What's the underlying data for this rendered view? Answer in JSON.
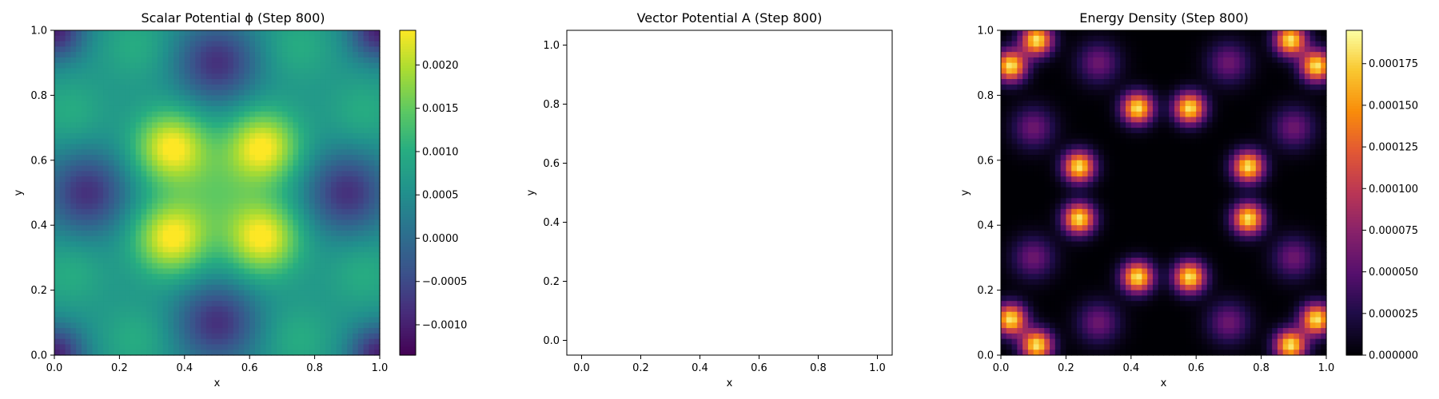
{
  "chart_data": [
    {
      "type": "heatmap",
      "title": "Scalar Potential ϕ (Step 800)",
      "xlabel": "x",
      "ylabel": "y",
      "xlim": [
        0.0,
        1.0
      ],
      "ylim": [
        0.0,
        1.0
      ],
      "xticks": [
        "0.0",
        "0.2",
        "0.4",
        "0.6",
        "0.8",
        "1.0"
      ],
      "yticks": [
        "0.0",
        "0.2",
        "0.4",
        "0.6",
        "0.8",
        "1.0"
      ],
      "colormap": "viridis",
      "colorbar": {
        "min": -0.00135,
        "max": 0.0024,
        "ticks": [
          -0.001,
          -0.0005,
          0.0,
          0.0005,
          0.001,
          0.0015,
          0.002
        ],
        "tick_labels": [
          "−0.0010",
          "−0.0005",
          "0.0000",
          "0.0005",
          "0.0010",
          "0.0015",
          "0.0020"
        ]
      },
      "grid": false
    },
    {
      "type": "scatter",
      "title": "Vector Potential A (Step 800)",
      "xlabel": "x",
      "ylabel": "y",
      "xlim": [
        -0.05,
        1.05
      ],
      "ylim": [
        -0.05,
        1.05
      ],
      "xticks": [
        "0.0",
        "0.2",
        "0.4",
        "0.6",
        "0.8",
        "1.0"
      ],
      "yticks": [
        "0.0",
        "0.2",
        "0.4",
        "0.6",
        "0.8",
        "1.0"
      ],
      "series": [],
      "grid": false
    },
    {
      "type": "heatmap",
      "title": "Energy Density (Step 800)",
      "xlabel": "x",
      "ylabel": "y",
      "xlim": [
        0.0,
        1.0
      ],
      "ylim": [
        0.0,
        1.0
      ],
      "xticks": [
        "0.0",
        "0.2",
        "0.4",
        "0.6",
        "0.8",
        "1.0"
      ],
      "yticks": [
        "0.0",
        "0.2",
        "0.4",
        "0.6",
        "0.8",
        "1.0"
      ],
      "colormap": "inferno",
      "colorbar": {
        "min": 0.0,
        "max": 0.000195,
        "ticks": [
          0.0,
          2.5e-05,
          5e-05,
          7.5e-05,
          0.0001,
          0.000125,
          0.00015,
          0.000175
        ],
        "tick_labels": [
          "0.000000",
          "0.000025",
          "0.000050",
          "0.000075",
          "0.000100",
          "0.000125",
          "0.000150",
          "0.000175"
        ]
      },
      "grid": false
    }
  ]
}
